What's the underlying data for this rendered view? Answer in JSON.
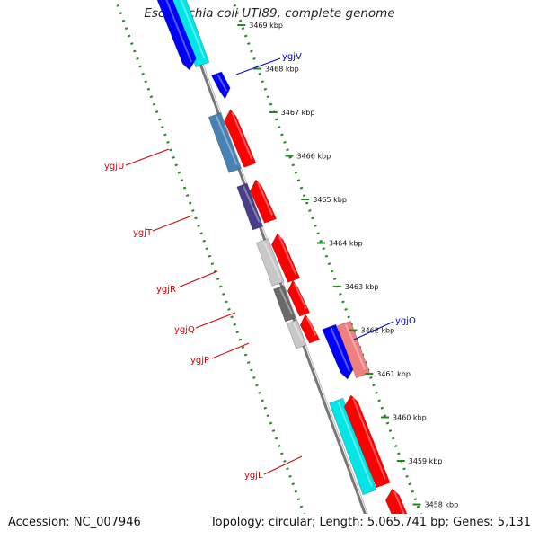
{
  "title": "Escherichia coli UTI89, complete genome",
  "footer": {
    "accession_label": "Accession: NC_007946",
    "stats_label": "Topology: circular; Length: 5,065,741 bp; Genes: 5,131"
  },
  "ruler_ticks": [
    {
      "label": "3469 kbp",
      "kbp": 3469
    },
    {
      "label": "3468 kbp",
      "kbp": 3468
    },
    {
      "label": "3467 kbp",
      "kbp": 3467
    },
    {
      "label": "3466 kbp",
      "kbp": 3466
    },
    {
      "label": "3465 kbp",
      "kbp": 3465
    },
    {
      "label": "3464 kbp",
      "kbp": 3464
    },
    {
      "label": "3463 kbp",
      "kbp": 3463
    },
    {
      "label": "3462 kbp",
      "kbp": 3462
    },
    {
      "label": "3461 kbp",
      "kbp": 3461
    },
    {
      "label": "3460 kbp",
      "kbp": 3460
    },
    {
      "label": "3459 kbp",
      "kbp": 3459
    },
    {
      "label": "3458 kbp",
      "kbp": 3458
    }
  ],
  "gene_labels": [
    {
      "name": "ygjV",
      "color": "#0000cc"
    },
    {
      "name": "ygjU",
      "color": "#cc0000"
    },
    {
      "name": "ygjT",
      "color": "#cc0000"
    },
    {
      "name": "ygjR",
      "color": "#cc0000"
    },
    {
      "name": "ygjQ",
      "color": "#cc0000"
    },
    {
      "name": "ygjP",
      "color": "#cc0000"
    },
    {
      "name": "ygjO",
      "color": "#0000cc"
    },
    {
      "name": "ygjL",
      "color": "#cc0000"
    }
  ],
  "colors": {
    "backbone": "#777777",
    "dotted_track": "#228822",
    "red": "#ff0000",
    "blue": "#0000ff",
    "cyan": "#00e5e5",
    "steelblue": "#4682b4",
    "darkslate": "#483d8b",
    "lightgray": "#c8c8c8",
    "dimgray": "#696969",
    "lightcoral": "#f08080"
  }
}
